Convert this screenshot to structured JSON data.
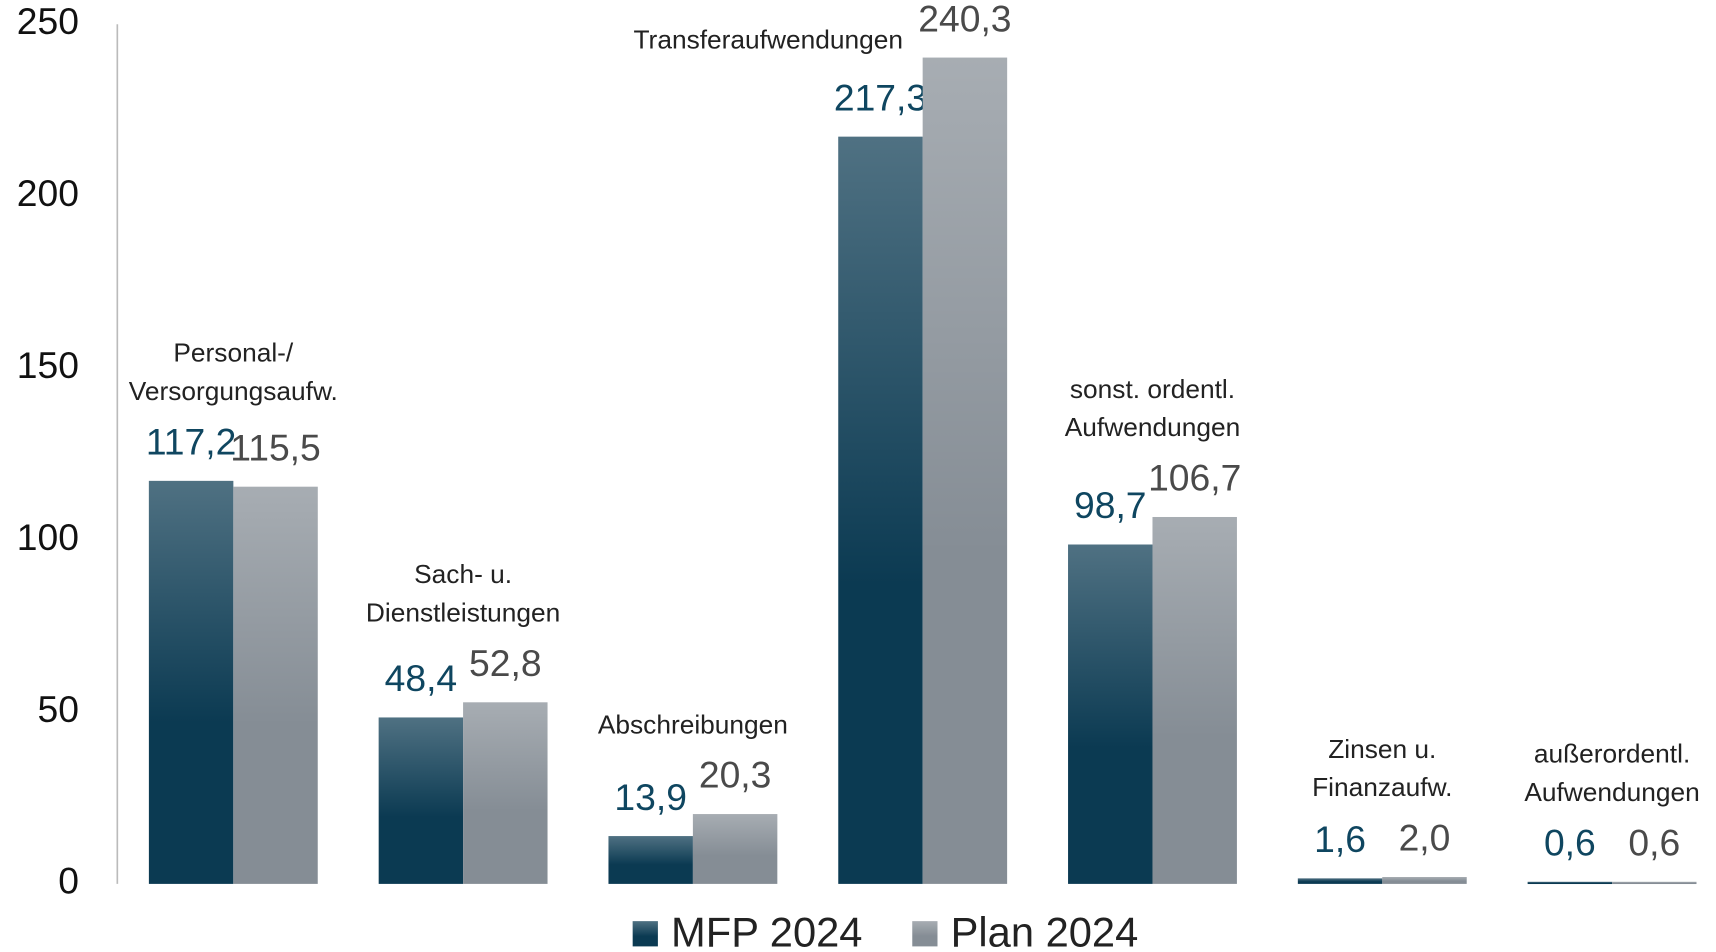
{
  "chart_data": {
    "type": "bar",
    "categories": [
      [
        "Personal-/",
        "Versorgungsaufw."
      ],
      [
        "Sach- u.",
        "Dienstleistungen"
      ],
      [
        "Abschreibungen"
      ],
      [
        "Transferaufwendungen"
      ],
      [
        "sonst. ordentl.",
        "Aufwendungen"
      ],
      [
        "Zinsen u.",
        "Finanzaufw."
      ],
      [
        "außerordentl.",
        "Aufwendungen"
      ]
    ],
    "series": [
      {
        "name": "MFP 2024",
        "color": "#0b3a52",
        "label_color": "#0f4660",
        "values": [
          117.2,
          48.4,
          13.9,
          217.3,
          98.7,
          1.6,
          0.6
        ],
        "value_labels": [
          "117,2",
          "48,4",
          "13,9",
          "217,3",
          "98,7",
          "1,6",
          "0,6"
        ]
      },
      {
        "name": "Plan 2024",
        "color": "#858d95",
        "label_color": "#4a4a4a",
        "values": [
          115.5,
          52.8,
          20.3,
          240.3,
          106.7,
          2.0,
          0.6
        ],
        "value_labels": [
          "115,5",
          "52,8",
          "20,3",
          "240,3",
          "106,7",
          "2,0",
          "0,6"
        ]
      }
    ],
    "ylim": [
      0,
      250
    ],
    "yticks": [
      0,
      50,
      100,
      150,
      200,
      250
    ],
    "grid": false,
    "legend": "bottom"
  }
}
